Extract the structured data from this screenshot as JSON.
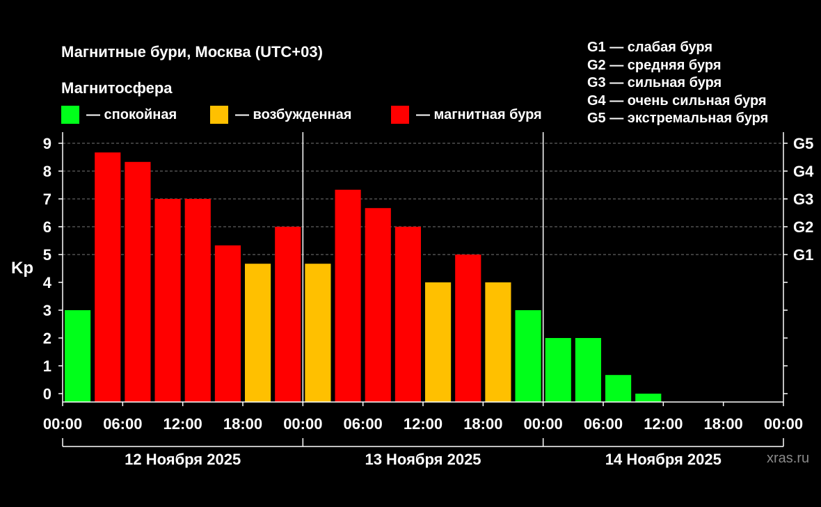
{
  "chart_data": {
    "type": "bar",
    "title": "Магнитные бури, Москва (UTC+03)",
    "subtitle": "Магнитосфера",
    "ylabel": "Kp",
    "ylim": [
      0,
      9
    ],
    "yticks": [
      "0",
      "1",
      "2",
      "3",
      "4",
      "5",
      "6",
      "7",
      "8",
      "9"
    ],
    "g_levels": [
      {
        "label": "G1",
        "kp": 5
      },
      {
        "label": "G2",
        "kp": 6
      },
      {
        "label": "G3",
        "kp": 7
      },
      {
        "label": "G4",
        "kp": 8
      },
      {
        "label": "G5",
        "kp": 9
      }
    ],
    "xtick_labels": [
      "00:00",
      "06:00",
      "12:00",
      "18:00",
      "00:00",
      "06:00",
      "12:00",
      "18:00",
      "00:00",
      "06:00",
      "12:00",
      "18:00",
      "00:00"
    ],
    "days": [
      "12 Ноября 2025",
      "13 Ноября 2025",
      "14 Ноября 2025"
    ],
    "interval_hours": 3,
    "values": [
      3.0,
      8.67,
      8.33,
      7.0,
      7.0,
      5.33,
      4.67,
      6.0,
      4.67,
      7.33,
      6.67,
      6.0,
      4.0,
      5.0,
      4.0,
      3.0,
      2.0,
      2.0,
      0.67,
      0.0
    ],
    "categories": [
      "quiet",
      "storm",
      "storm",
      "storm",
      "storm",
      "storm",
      "active",
      "storm",
      "active",
      "storm",
      "storm",
      "storm",
      "active",
      "storm",
      "active",
      "quiet",
      "quiet",
      "quiet",
      "quiet",
      "quiet"
    ],
    "legend": [
      {
        "key": "quiet",
        "label": "— спокойная",
        "color": "#00ff1a"
      },
      {
        "key": "active",
        "label": "— возбужденная",
        "color": "#ffc000"
      },
      {
        "key": "storm",
        "label": "— магнитная буря",
        "color": "#ff0000"
      }
    ],
    "g_legend": [
      "G1 — слабая буря",
      "G2 — средняя буря",
      "G3 — сильная буря",
      "G4 — очень сильная буря",
      "G5 — экстремальная буря"
    ],
    "grid": "dashed at Kp 5–9"
  },
  "watermark": "xras.ru"
}
